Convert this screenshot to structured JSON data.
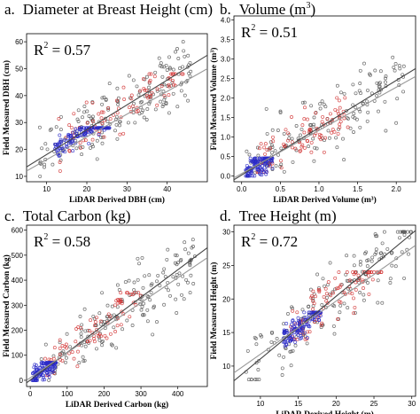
{
  "chart_data": [
    {
      "type": "scatter",
      "panel_letter": "a.",
      "title": "Diameter at Breast Height (cm)",
      "r2_label": "R",
      "r2_sup": "2",
      "r2_value": " = 0.57",
      "xlabel": "LiDAR Derived DBH (cm)",
      "ylabel": "Field Measured DBH (cm)",
      "xlim": [
        5,
        50
      ],
      "ylim": [
        8,
        63
      ],
      "xticks": [
        10,
        20,
        30,
        40
      ],
      "yticks": [
        10,
        20,
        30,
        40,
        50,
        60
      ],
      "tick_decimals": 0,
      "grid": false,
      "series": [
        {
          "color": "#555555",
          "count": 180,
          "x": [
            8,
            46
          ],
          "y": [
            10,
            60
          ]
        },
        {
          "color": "#d23232",
          "count": 90,
          "x": [
            13,
            44
          ],
          "y": [
            12,
            48
          ]
        },
        {
          "color": "#2a2ac8",
          "count": 140,
          "x": [
            12,
            26
          ],
          "y": [
            10,
            28
          ]
        }
      ],
      "fit_lines": [
        {
          "color": "#444444",
          "x": [
            5,
            50
          ],
          "y": [
            13.5,
            55
          ]
        },
        {
          "color": "#999999",
          "x": [
            5,
            50
          ],
          "y": [
            12,
            50
          ]
        }
      ]
    },
    {
      "type": "scatter",
      "panel_letter": "b.",
      "title": "Volume (m",
      "title_sup": "3",
      "title_end": ")",
      "r2_label": "R",
      "r2_sup": "2",
      "r2_value": " = 0.51",
      "xlabel": "LiDAR Derived Volume (m³)",
      "ylabel": "Field Measured Volume (m³)",
      "xlim": [
        -0.1,
        2.25
      ],
      "ylim": [
        -0.15,
        4.1
      ],
      "xticks": [
        0.0,
        0.5,
        1.0,
        1.5,
        2.0
      ],
      "yticks": [
        0.0,
        0.5,
        1.0,
        1.5,
        2.0,
        2.5,
        3.0,
        3.5,
        4.0
      ],
      "tick_decimals": 1,
      "grid": false,
      "series": [
        {
          "color": "#555555",
          "count": 160,
          "x": [
            0.05,
            2.1
          ],
          "y": [
            0.0,
            4.0
          ]
        },
        {
          "color": "#d23232",
          "count": 90,
          "x": [
            0.2,
            1.4
          ],
          "y": [
            0.1,
            2.0
          ]
        },
        {
          "color": "#2a2ac8",
          "count": 140,
          "x": [
            0.05,
            0.4
          ],
          "y": [
            0.0,
            0.45
          ]
        }
      ],
      "fit_lines": [
        {
          "color": "#444444",
          "x": [
            -0.1,
            2.25
          ],
          "y": [
            -0.1,
            2.75
          ]
        },
        {
          "color": "#999999",
          "x": [
            -0.1,
            2.25
          ],
          "y": [
            -0.05,
            2.55
          ]
        }
      ]
    },
    {
      "type": "scatter",
      "panel_letter": "c.",
      "title": "Total Carbon (kg)",
      "r2_label": "R",
      "r2_sup": "2",
      "r2_value": " = 0.58",
      "xlabel": "LiDAR Derived Carbon (kg)",
      "ylabel": "Field Measured Carbon (kg)",
      "xlim": [
        -10,
        480
      ],
      "ylim": [
        -25,
        620
      ],
      "xticks": [
        0,
        100,
        200,
        300,
        400
      ],
      "yticks": [
        0,
        100,
        200,
        300,
        400,
        500,
        600
      ],
      "tick_decimals": 0,
      "grid": false,
      "series": [
        {
          "color": "#555555",
          "count": 170,
          "x": [
            10,
            450
          ],
          "y": [
            0,
            580
          ]
        },
        {
          "color": "#d23232",
          "count": 80,
          "x": [
            40,
            300
          ],
          "y": [
            20,
            350
          ]
        },
        {
          "color": "#2a2ac8",
          "count": 140,
          "x": [
            5,
            70
          ],
          "y": [
            0,
            70
          ]
        }
      ],
      "fit_lines": [
        {
          "color": "#444444",
          "x": [
            -10,
            480
          ],
          "y": [
            -10,
            530
          ]
        },
        {
          "color": "#999999",
          "x": [
            -10,
            480
          ],
          "y": [
            0,
            490
          ]
        }
      ]
    },
    {
      "type": "scatter",
      "panel_letter": "d.",
      "title": "Tree Height (m)",
      "r2_label": "R",
      "r2_sup": "2",
      "r2_value": " = 0.72",
      "xlabel": "LiDAR Derived Height (m)",
      "ylabel": "Field Measured Height (m)",
      "xlim": [
        6.5,
        30.5
      ],
      "ylim": [
        5.5,
        31
      ],
      "xticks": [
        10,
        15,
        20,
        25,
        30
      ],
      "yticks": [
        10,
        15,
        20,
        25,
        30
      ],
      "tick_decimals": 0,
      "grid": false,
      "series": [
        {
          "color": "#555555",
          "count": 170,
          "x": [
            8,
            30
          ],
          "y": [
            8,
            30
          ]
        },
        {
          "color": "#d23232",
          "count": 100,
          "x": [
            14,
            26
          ],
          "y": [
            14,
            24
          ]
        },
        {
          "color": "#2a2ac8",
          "count": 140,
          "x": [
            13,
            18
          ],
          "y": [
            13,
            18
          ]
        }
      ],
      "fit_lines": [
        {
          "color": "#444444",
          "x": [
            6.5,
            30.5
          ],
          "y": [
            7.8,
            30.2
          ]
        },
        {
          "color": "#999999",
          "x": [
            6.5,
            30.5
          ],
          "y": [
            9,
            28
          ]
        }
      ]
    }
  ]
}
